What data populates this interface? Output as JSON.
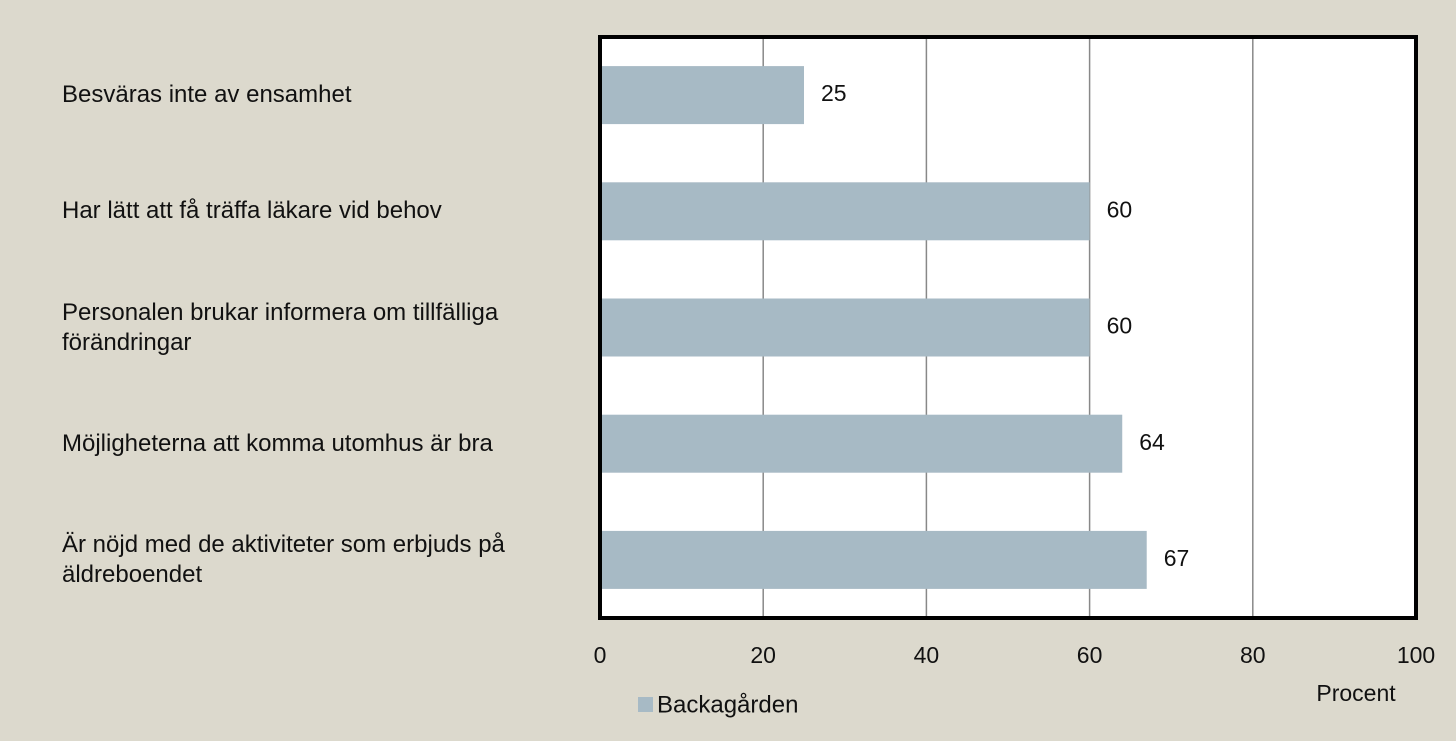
{
  "chart_data": {
    "type": "hbar",
    "categories": [
      "Besväras inte av ensamhet",
      "Har lätt att få träffa läkare vid behov",
      "Personalen brukar informera om tillfälliga förändringar",
      "Möjligheterna att komma utomhus är bra",
      "Är nöjd med de aktiviteter som erbjuds på äldreboendet"
    ],
    "series": [
      {
        "name": "Backagården",
        "color": "#a7bac5",
        "values": [
          25,
          60,
          60,
          64,
          67
        ]
      }
    ],
    "xlabel": "Procent",
    "xlim": [
      0,
      100
    ],
    "xticks": [
      0,
      20,
      40,
      60,
      80,
      100
    ],
    "grid": true,
    "legend": "bottom"
  }
}
